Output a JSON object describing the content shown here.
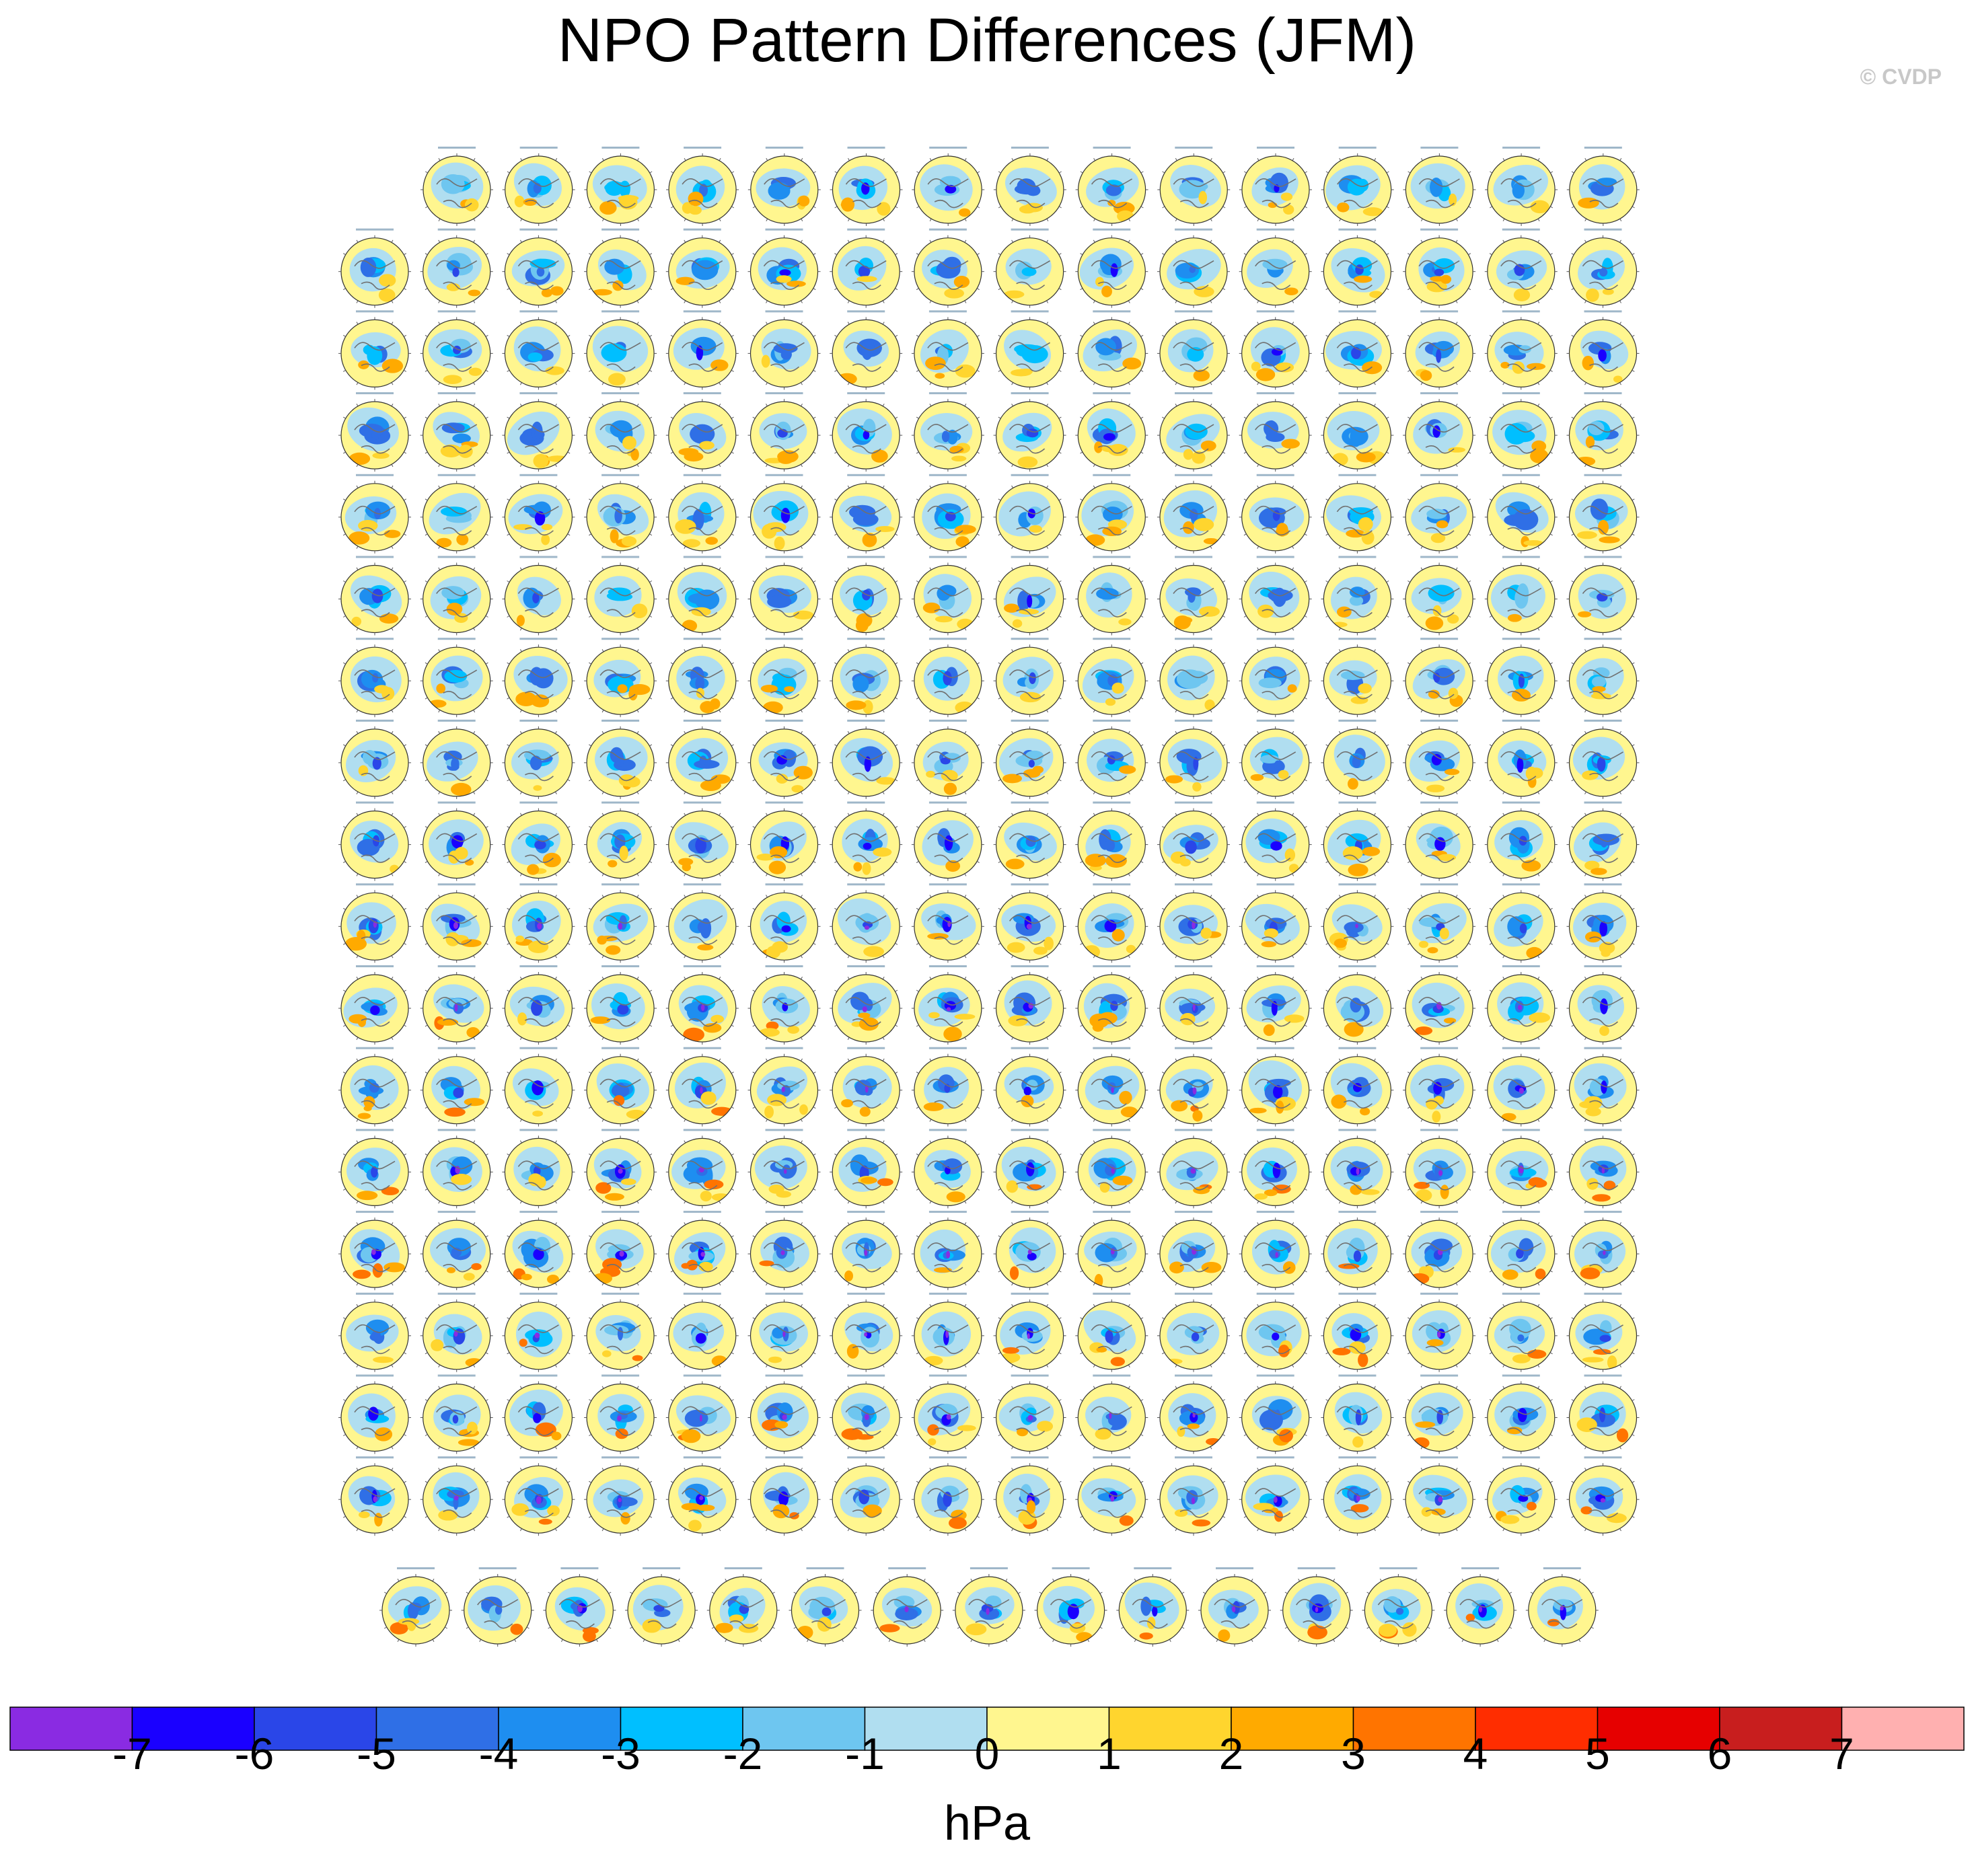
{
  "title": "NPO Pattern Differences (JFM)",
  "credit": "© CVDP",
  "chart_data": {
    "type": "heatmap",
    "description_kind": "small-multiples polar map panels of sea level pressure pattern differences",
    "units": "hPa",
    "panel_rows": [
      15,
      16,
      16,
      16,
      16,
      16,
      16,
      16,
      16,
      16,
      16,
      16,
      16,
      16,
      16,
      16,
      16,
      15
    ],
    "colorbar": {
      "label": "hPa",
      "tick_labels": [
        "-7",
        "-6",
        "-5",
        "-4",
        "-3",
        "-2",
        "-1",
        "0",
        "1",
        "2",
        "3",
        "4",
        "5",
        "6",
        "7"
      ],
      "tick_values": [
        -7,
        -6,
        -5,
        -4,
        -3,
        -2,
        -1,
        0,
        1,
        2,
        3,
        4,
        5,
        6,
        7
      ],
      "colors": [
        "#8a2be2",
        "#1a00ff",
        "#2a46e8",
        "#2f6fe6",
        "#1e8ef0",
        "#00bfff",
        "#6ec6f0",
        "#b0def0",
        "#fff68f",
        "#ffd52e",
        "#ffaa00",
        "#ff7400",
        "#ff2d00",
        "#e60000",
        "#c81e1e",
        "#ffb0b0"
      ]
    }
  }
}
